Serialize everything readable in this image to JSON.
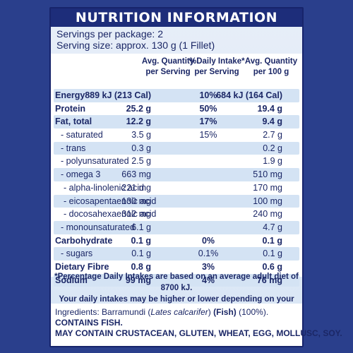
{
  "title": "NUTRITION INFORMATION",
  "servings_per_package": "Servings per package: 2",
  "serving_size": "Serving size: approx. 130 g (1 Fillet)",
  "headers": {
    "col1_line1": "Avg. Quantity",
    "col1_line2": "per Serving",
    "col2_line1": "%Daily Intake*",
    "col2_line2": "per Serving",
    "col3_line1": "Avg. Quantity",
    "col3_line2": "per 100 g"
  },
  "rows": [
    {
      "label": "Energy",
      "per_serving": "889 kJ (213 Cal)",
      "daily_intake": "10%",
      "per_100g": "684 kJ (164 Cal)"
    },
    {
      "label": "Protein",
      "per_serving": "25.2 g",
      "daily_intake": "50%",
      "per_100g": "19.4 g"
    },
    {
      "label": "Fat, total",
      "per_serving": "12.2 g",
      "daily_intake": "17%",
      "per_100g": "9.4 g"
    },
    {
      "label": "- saturated",
      "per_serving": "3.5 g",
      "daily_intake": "15%",
      "per_100g": "2.7 g"
    },
    {
      "label": "- trans",
      "per_serving": "0.3 g",
      "daily_intake": "",
      "per_100g": "0.2 g"
    },
    {
      "label": "- polyunsaturated",
      "per_serving": "2.5 g",
      "daily_intake": "",
      "per_100g": "1.9 g"
    },
    {
      "label": "- omega 3",
      "per_serving": "663 mg",
      "daily_intake": "",
      "per_100g": "510 mg"
    },
    {
      "label": "- alpha-linolenic acid",
      "per_serving": "221 mg",
      "daily_intake": "",
      "per_100g": "170 mg"
    },
    {
      "label": "- eicosapentaenoic acid",
      "per_serving": "130 mg",
      "daily_intake": "",
      "per_100g": "100 mg"
    },
    {
      "label": "- docosahexaenoic acid",
      "per_serving": "312 mg",
      "daily_intake": "",
      "per_100g": "240 mg"
    },
    {
      "label": "- monounsaturated",
      "per_serving": "6.1 g",
      "daily_intake": "",
      "per_100g": "4.7 g"
    },
    {
      "label": "Carbohydrate",
      "per_serving": "0.1 g",
      "daily_intake": "0%",
      "per_100g": "0.1 g"
    },
    {
      "label": "- sugars",
      "per_serving": "0.1 g",
      "daily_intake": "0.1%",
      "per_100g": "0.1 g"
    },
    {
      "label": "Dietary Fibre",
      "per_serving": "0.8 g",
      "daily_intake": "3%",
      "per_100g": "0.6 g"
    },
    {
      "label": "Sodium",
      "per_serving": "99 mg",
      "daily_intake": "4%",
      "per_100g": "76 mg"
    }
  ],
  "footnote_line1": "*Percentage Daily Intakes are based on an average adult diet of 8700 kJ.",
  "footnote_line2": "Your daily intakes may be higher or lower depending on your energy needs.",
  "ingredients": {
    "prefix": "Ingredients: Barramundi (",
    "latin_name": "Lates calcarifer",
    "middle": ") ",
    "allergen": "(Fish)",
    "suffix": " (100%).",
    "contains": "CONTAINS FISH.",
    "may_contain": "MAY CONTAIN CRUSTACEAN, GLUTEN, WHEAT, EGG, MOLLUSC, SOY."
  },
  "colors": {
    "background": "#2a3f8c",
    "title_bar": "#1d2d7a",
    "text": "#1b2766",
    "row_stripe": "#d4e3f4"
  }
}
